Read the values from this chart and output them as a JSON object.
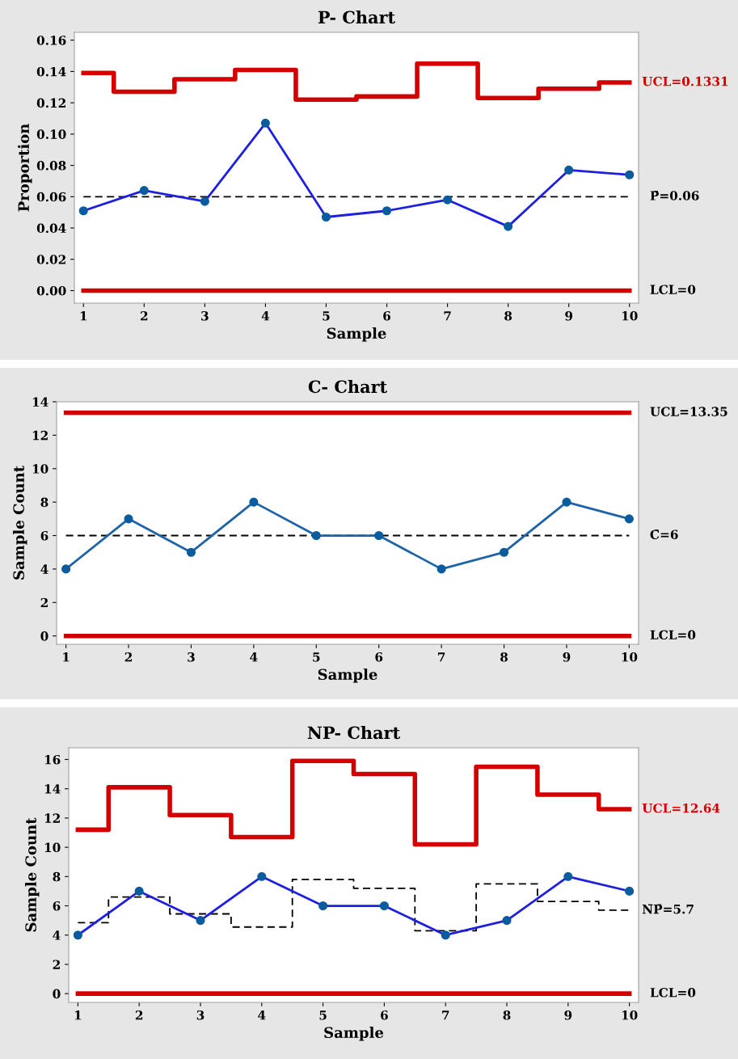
{
  "chart_data": [
    {
      "type": "line",
      "title": "P- Chart",
      "xlabel": "Sample",
      "ylabel": "Proportion",
      "x": [
        1,
        2,
        3,
        4,
        5,
        6,
        7,
        8,
        9,
        10
      ],
      "xlim": [
        0.85,
        10.15
      ],
      "xticks": [
        1,
        2,
        3,
        4,
        5,
        6,
        7,
        8,
        9,
        10
      ],
      "ylim": [
        -0.008,
        0.165
      ],
      "yticks": [
        {
          "value": 0,
          "label": "0.00"
        },
        {
          "value": 0.02,
          "label": "0.02"
        },
        {
          "value": 0.04,
          "label": "0.04"
        },
        {
          "value": 0.06,
          "label": "0.06"
        },
        {
          "value": 0.08,
          "label": "0.08"
        },
        {
          "value": 0.1,
          "label": "0.10"
        },
        {
          "value": 0.12,
          "label": "0.12"
        },
        {
          "value": 0.14,
          "label": "0.14"
        },
        {
          "value": 0.16,
          "label": "0.16"
        }
      ],
      "grid": false,
      "legend": false,
      "series": [
        {
          "type": "step",
          "name": "UCL=0.1331",
          "color": "#d40000",
          "values": [
            0.139,
            0.127,
            0.135,
            0.141,
            0.122,
            0.124,
            0.145,
            0.123,
            0.129,
            0.133
          ]
        },
        {
          "color": "#1f1fe0",
          "marker": "circle",
          "values": [
            0.051,
            0.064,
            0.057,
            0.107,
            0.047,
            0.051,
            0.058,
            0.041,
            0.077,
            0.074
          ]
        }
      ],
      "ref_lines": [
        {
          "axis": "y",
          "value": 0.06,
          "label": "P̄=0.06",
          "color": "#000000",
          "line_style": "dashed"
        },
        {
          "axis": "y",
          "value": 0,
          "label": "LCL=0",
          "color": "#d40000",
          "line_style": "solid"
        }
      ]
    },
    {
      "type": "line",
      "title": "C- Chart",
      "xlabel": "Sample",
      "ylabel": "Sample Count",
      "x": [
        1,
        2,
        3,
        4,
        5,
        6,
        7,
        8,
        9,
        10
      ],
      "xlim": [
        0.85,
        10.15
      ],
      "xticks": [
        1,
        2,
        3,
        4,
        5,
        6,
        7,
        8,
        9,
        10
      ],
      "ylim": [
        -0.5,
        14
      ],
      "yticks": [
        0,
        2,
        4,
        6,
        8,
        10,
        12,
        14
      ],
      "grid": false,
      "legend": false,
      "marker": "circle",
      "series": [
        {
          "color": "#1f63a8",
          "values": [
            4,
            7,
            5,
            8,
            6,
            6,
            4,
            5,
            8,
            7
          ]
        }
      ],
      "ref_lines": [
        {
          "axis": "y",
          "value": 13.35,
          "label": "UCL=13.35",
          "color": "#d40000",
          "line_style": "solid"
        },
        {
          "axis": "y",
          "value": 6,
          "label": "C̄=6",
          "color": "#000000",
          "line_style": "dashed"
        },
        {
          "axis": "y",
          "value": 0,
          "label": "LCL=0",
          "color": "#d40000",
          "line_style": "solid"
        }
      ]
    },
    {
      "type": "line",
      "title": "NP- Chart",
      "xlabel": "Sample",
      "ylabel": "Sample Count",
      "x": [
        1,
        2,
        3,
        4,
        5,
        6,
        7,
        8,
        9,
        10
      ],
      "xlim": [
        0.85,
        10.15
      ],
      "xticks": [
        1,
        2,
        3,
        4,
        5,
        6,
        7,
        8,
        9,
        10
      ],
      "ylim": [
        -0.6,
        16.8
      ],
      "yticks": [
        0,
        2,
        4,
        6,
        8,
        10,
        12,
        14,
        16
      ],
      "grid": false,
      "legend": false,
      "series": [
        {
          "type": "step",
          "name": "UCL=12.64",
          "color": "#d40000",
          "values": [
            11.2,
            14.1,
            12.2,
            10.7,
            15.9,
            15.0,
            10.2,
            15.5,
            13.6,
            12.6
          ]
        },
        {
          "type": "step",
          "name": "N̄P̄=5.7",
          "color": "#000000",
          "line_style": "dashed",
          "values": [
            4.85,
            6.6,
            5.45,
            4.55,
            7.8,
            7.2,
            4.3,
            7.5,
            6.3,
            5.7
          ]
        },
        {
          "color": "#1f1fe0",
          "marker": "circle",
          "values": [
            4,
            7,
            5,
            8,
            6,
            6,
            4,
            5,
            8,
            7
          ]
        }
      ],
      "ref_lines": [
        {
          "axis": "y",
          "value": 0,
          "label": "LCL=0",
          "color": "#d40000",
          "line_style": "solid"
        }
      ]
    }
  ]
}
